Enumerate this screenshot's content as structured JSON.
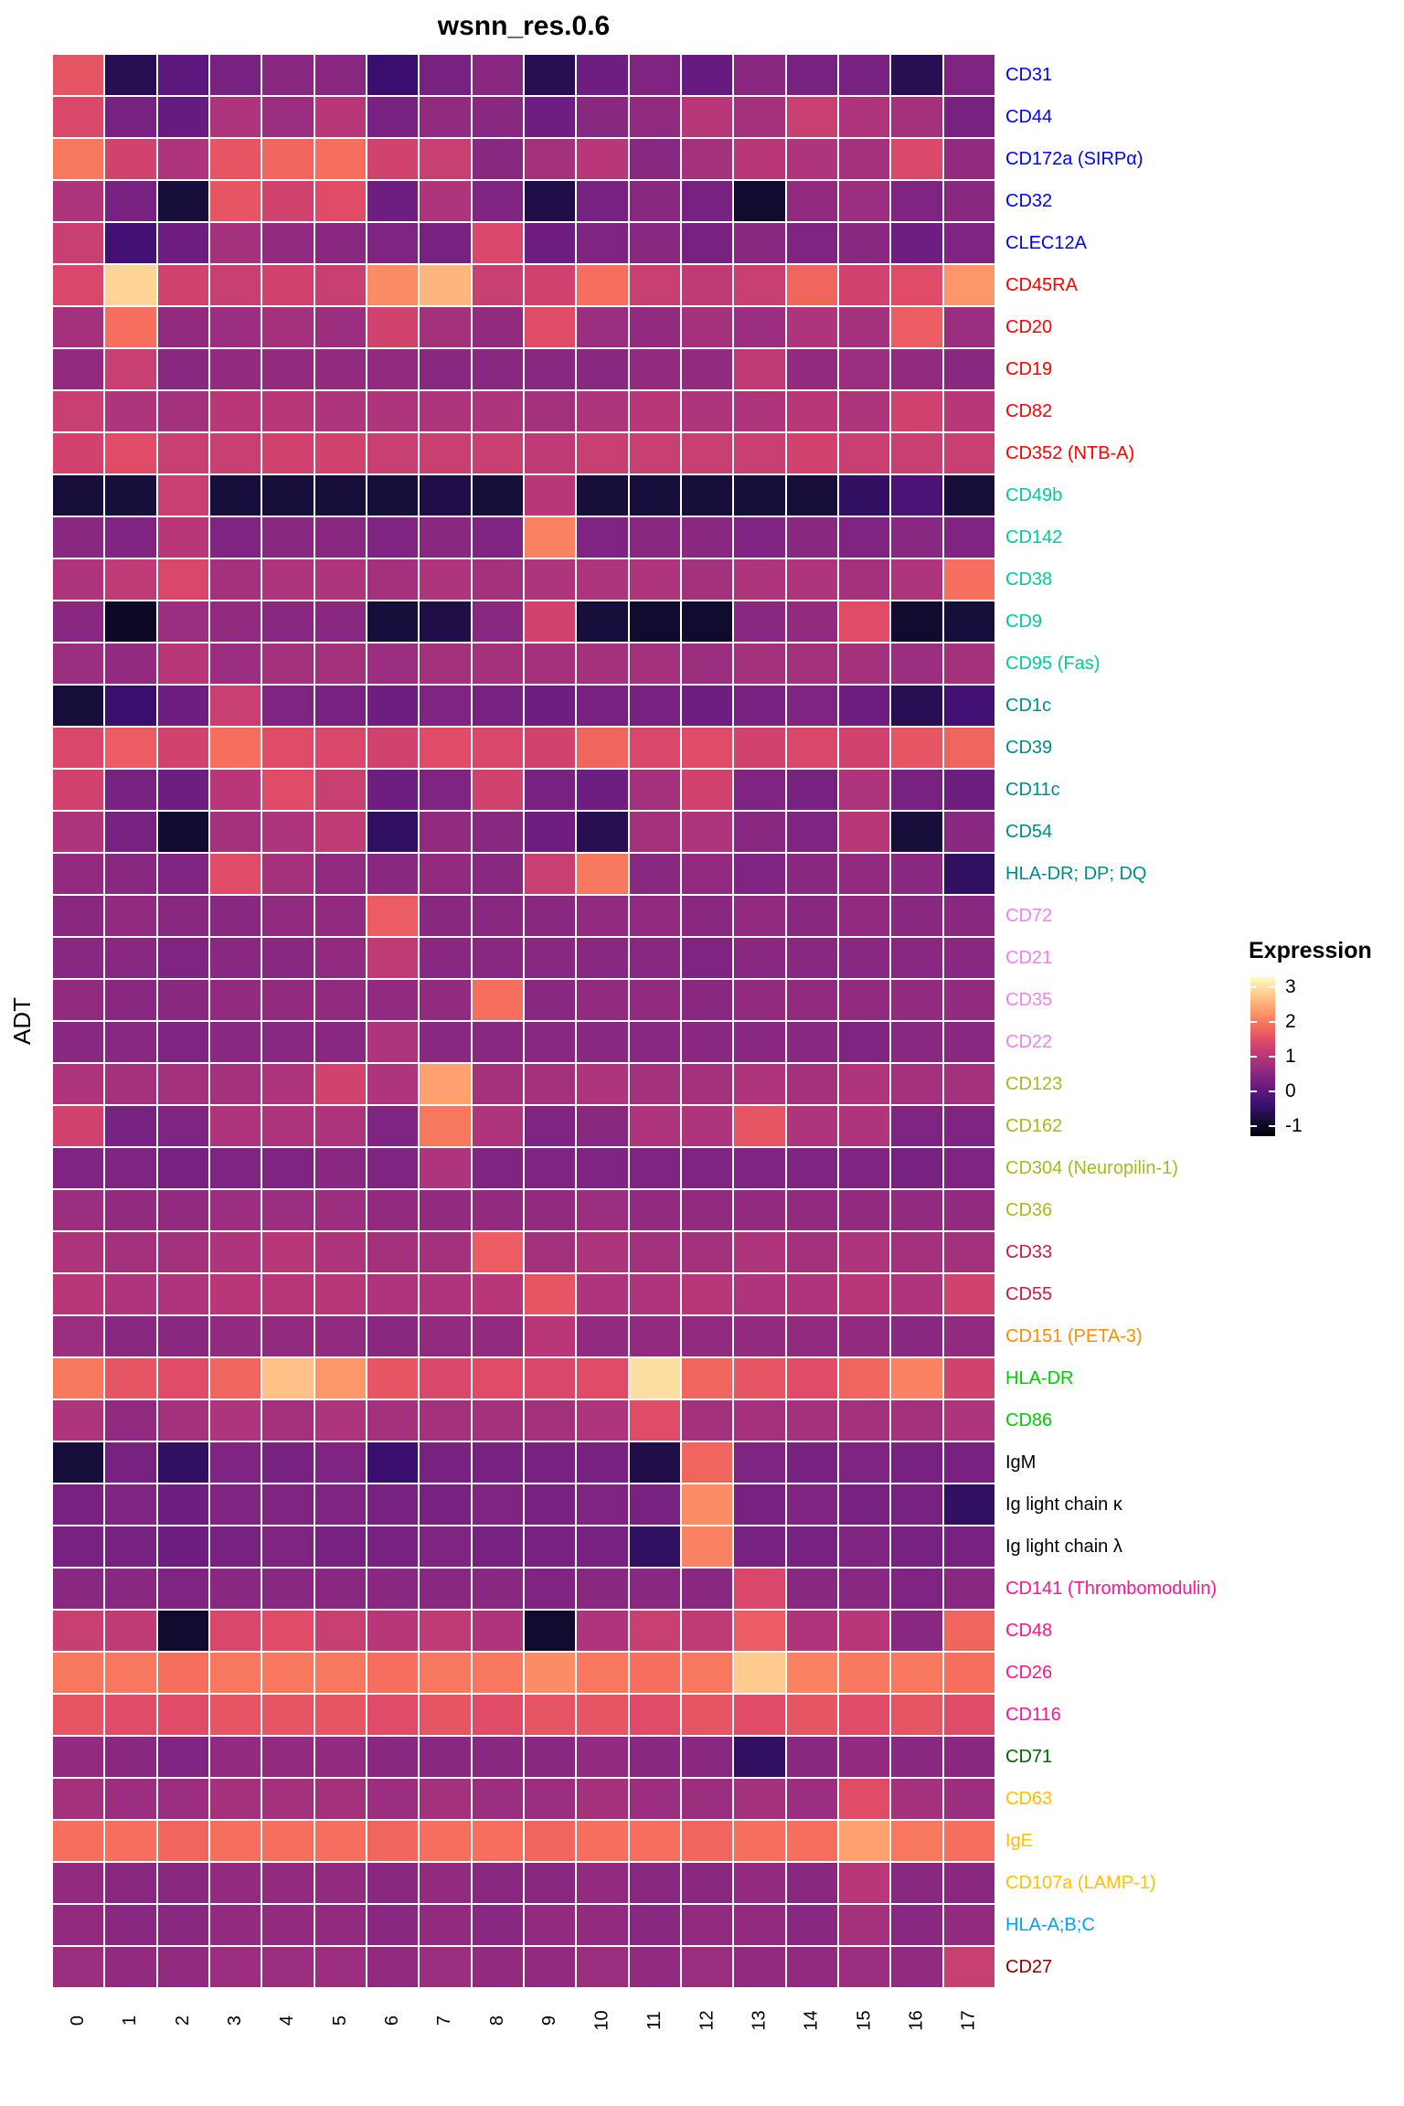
{
  "title": "wsnn_res.0.6",
  "y_axis_label": "ADT",
  "legend": {
    "title": "Expression",
    "ticks": [
      3,
      2,
      1,
      0,
      -1
    ]
  },
  "chart_data": {
    "type": "heatmap",
    "title": "wsnn_res.0.6",
    "xlabel": "",
    "ylabel": "ADT",
    "colormap": "magma",
    "value_domain": [
      -1.3,
      3.3
    ],
    "legend_title": "Expression",
    "legend_ticks": [
      3,
      2,
      1,
      0,
      -1
    ],
    "grid": "white-gaps-between-cells",
    "legend_position": "right",
    "x_categories": [
      "0",
      "1",
      "2",
      "3",
      "4",
      "5",
      "6",
      "7",
      "8",
      "9",
      "10",
      "11",
      "12",
      "13",
      "14",
      "15",
      "16",
      "17"
    ],
    "rows": [
      {
        "label": "CD31",
        "label_color": "#0000FF",
        "values": [
          1.6,
          -0.6,
          0.0,
          0.3,
          0.5,
          0.5,
          -0.4,
          0.3,
          0.5,
          -0.6,
          0.2,
          0.4,
          0.1,
          0.5,
          0.3,
          0.3,
          -0.6,
          0.4
        ]
      },
      {
        "label": "CD44",
        "label_color": "#0000FF",
        "values": [
          1.4,
          0.3,
          0.1,
          0.9,
          0.7,
          1.0,
          0.3,
          0.6,
          0.5,
          0.2,
          0.5,
          0.6,
          1.0,
          0.8,
          1.2,
          0.9,
          0.8,
          0.3
        ]
      },
      {
        "label": "CD172a (SIRPα)",
        "label_color": "#0000FF",
        "values": [
          2.0,
          1.3,
          0.9,
          1.6,
          1.8,
          1.9,
          1.3,
          1.2,
          0.5,
          0.8,
          1.0,
          0.5,
          0.8,
          1.0,
          0.9,
          0.8,
          1.4,
          0.6
        ]
      },
      {
        "label": "CD32",
        "label_color": "#0000FF",
        "values": [
          0.9,
          0.3,
          -0.8,
          1.6,
          1.3,
          1.5,
          0.2,
          0.9,
          0.4,
          -0.7,
          0.3,
          0.5,
          0.3,
          -0.9,
          0.6,
          0.7,
          0.4,
          0.5
        ]
      },
      {
        "label": "CLEC12A",
        "label_color": "#0000FF",
        "values": [
          1.2,
          -0.3,
          0.2,
          0.8,
          0.6,
          0.5,
          0.4,
          0.3,
          1.4,
          0.2,
          0.4,
          0.5,
          0.3,
          0.5,
          0.4,
          0.5,
          0.2,
          0.4
        ]
      },
      {
        "label": "CD45RA",
        "label_color": "#FF0000",
        "values": [
          1.4,
          2.9,
          1.3,
          1.2,
          1.3,
          1.2,
          2.2,
          2.6,
          1.2,
          1.3,
          1.9,
          1.2,
          1.1,
          1.2,
          1.8,
          1.3,
          1.5,
          2.3
        ]
      },
      {
        "label": "CD20",
        "label_color": "#FF0000",
        "values": [
          0.8,
          1.9,
          0.6,
          0.7,
          0.8,
          0.7,
          1.3,
          0.8,
          0.6,
          1.5,
          0.7,
          0.6,
          0.8,
          0.7,
          0.9,
          0.8,
          1.7,
          0.7
        ]
      },
      {
        "label": "CD19",
        "label_color": "#FF0000",
        "values": [
          0.6,
          1.2,
          0.5,
          0.6,
          0.6,
          0.6,
          0.6,
          0.5,
          0.5,
          0.5,
          0.5,
          0.6,
          0.6,
          1.1,
          0.6,
          0.7,
          0.6,
          0.5
        ]
      },
      {
        "label": "CD82",
        "label_color": "#FF0000",
        "values": [
          1.2,
          0.9,
          0.8,
          1.0,
          1.0,
          0.9,
          0.9,
          0.9,
          0.9,
          0.8,
          0.9,
          1.0,
          0.9,
          0.9,
          1.0,
          0.9,
          1.3,
          1.0
        ]
      },
      {
        "label": "CD352 (NTB-A)",
        "label_color": "#FF0000",
        "values": [
          1.3,
          1.5,
          1.2,
          1.2,
          1.3,
          1.3,
          1.2,
          1.2,
          1.2,
          1.1,
          1.2,
          1.2,
          1.2,
          1.2,
          1.3,
          1.2,
          1.2,
          1.2
        ]
      },
      {
        "label": "CD49b",
        "label_color": "#00CC99",
        "values": [
          -0.8,
          -0.8,
          1.2,
          -0.8,
          -0.8,
          -0.8,
          -0.8,
          -0.7,
          -0.8,
          1.0,
          -0.8,
          -0.8,
          -0.8,
          -0.8,
          -0.8,
          -0.5,
          -0.2,
          -0.8
        ]
      },
      {
        "label": "CD142",
        "label_color": "#00CC99",
        "values": [
          0.5,
          0.4,
          1.0,
          0.4,
          0.5,
          0.5,
          0.4,
          0.5,
          0.4,
          2.1,
          0.4,
          0.5,
          0.5,
          0.4,
          0.5,
          0.4,
          0.5,
          0.4
        ]
      },
      {
        "label": "CD38",
        "label_color": "#00CC99",
        "values": [
          0.9,
          1.1,
          1.4,
          0.8,
          0.9,
          0.9,
          0.8,
          0.9,
          0.8,
          0.9,
          0.9,
          0.9,
          0.8,
          0.9,
          0.9,
          0.8,
          0.9,
          1.9
        ]
      },
      {
        "label": "CD9",
        "label_color": "#00CC99",
        "values": [
          0.5,
          -1.0,
          0.7,
          0.6,
          0.5,
          0.5,
          -0.8,
          -0.7,
          0.5,
          1.3,
          -0.8,
          -0.9,
          -0.9,
          0.5,
          0.6,
          1.5,
          -0.9,
          -0.8
        ]
      },
      {
        "label": "CD95 (Fas)",
        "label_color": "#00CC99",
        "values": [
          0.7,
          0.6,
          1.0,
          0.7,
          0.8,
          0.8,
          0.7,
          0.8,
          0.8,
          0.8,
          0.8,
          0.8,
          0.7,
          0.8,
          0.8,
          0.8,
          0.7,
          0.8
        ]
      },
      {
        "label": "CD1c",
        "label_color": "#008B8B",
        "values": [
          -0.8,
          -0.4,
          0.2,
          1.2,
          0.4,
          0.3,
          0.2,
          0.4,
          0.3,
          0.2,
          0.3,
          0.3,
          0.2,
          0.3,
          0.4,
          0.2,
          -0.6,
          -0.3
        ]
      },
      {
        "label": "CD39",
        "label_color": "#008B8B",
        "values": [
          1.4,
          1.7,
          1.3,
          1.9,
          1.5,
          1.4,
          1.3,
          1.5,
          1.4,
          1.3,
          1.8,
          1.4,
          1.5,
          1.3,
          1.4,
          1.3,
          1.6,
          1.8
        ]
      },
      {
        "label": "CD11c",
        "label_color": "#008B8B",
        "values": [
          1.3,
          0.3,
          0.2,
          1.0,
          1.5,
          1.2,
          0.2,
          0.4,
          1.3,
          0.3,
          0.2,
          0.8,
          1.3,
          0.4,
          0.3,
          0.9,
          0.3,
          0.2
        ]
      },
      {
        "label": "CD54",
        "label_color": "#008B8B",
        "values": [
          0.9,
          0.3,
          -0.9,
          0.8,
          0.9,
          1.1,
          -0.5,
          0.6,
          0.5,
          0.2,
          -0.6,
          0.8,
          0.9,
          0.5,
          0.4,
          1.0,
          -0.8,
          0.5
        ]
      },
      {
        "label": "HLA-DR; DP; DQ",
        "label_color": "#008B8B",
        "values": [
          0.6,
          0.5,
          0.4,
          1.5,
          0.8,
          0.6,
          0.5,
          0.6,
          0.5,
          1.2,
          2.0,
          0.5,
          0.6,
          0.4,
          0.5,
          0.6,
          0.5,
          -0.5
        ]
      },
      {
        "label": "CD72",
        "label_color": "#EE82EE",
        "values": [
          0.5,
          0.6,
          0.5,
          0.5,
          0.6,
          0.6,
          1.7,
          0.5,
          0.5,
          0.5,
          0.6,
          0.6,
          0.5,
          0.6,
          0.5,
          0.6,
          0.5,
          0.5
        ]
      },
      {
        "label": "CD21",
        "label_color": "#EE82EE",
        "values": [
          0.5,
          0.5,
          0.4,
          0.5,
          0.5,
          0.6,
          1.1,
          0.5,
          0.5,
          0.5,
          0.5,
          0.5,
          0.4,
          0.5,
          0.5,
          0.5,
          0.5,
          0.5
        ]
      },
      {
        "label": "CD35",
        "label_color": "#EE82EE",
        "values": [
          0.6,
          0.5,
          0.5,
          0.6,
          0.6,
          0.6,
          0.6,
          0.6,
          1.9,
          0.5,
          0.6,
          0.6,
          0.5,
          0.6,
          0.6,
          0.6,
          0.6,
          0.6
        ]
      },
      {
        "label": "CD22",
        "label_color": "#EE82EE",
        "values": [
          0.5,
          0.5,
          0.4,
          0.5,
          0.5,
          0.5,
          0.9,
          0.5,
          0.5,
          0.5,
          0.5,
          0.5,
          0.5,
          0.5,
          0.5,
          0.4,
          0.5,
          0.5
        ]
      },
      {
        "label": "CD123",
        "label_color": "#A8B820",
        "values": [
          0.9,
          0.8,
          0.8,
          0.8,
          0.9,
          1.3,
          0.9,
          2.4,
          0.8,
          0.8,
          0.9,
          0.8,
          0.8,
          0.9,
          0.8,
          0.9,
          0.8,
          0.8
        ]
      },
      {
        "label": "CD162",
        "label_color": "#A8B820",
        "values": [
          1.3,
          0.3,
          0.4,
          0.9,
          0.9,
          0.9,
          0.4,
          2.0,
          0.9,
          0.4,
          0.5,
          0.9,
          0.9,
          1.6,
          0.9,
          0.9,
          0.4,
          0.4
        ]
      },
      {
        "label": "CD304 (Neuropilin-1)",
        "label_color": "#A8B820",
        "values": [
          0.4,
          0.4,
          0.3,
          0.4,
          0.4,
          0.5,
          0.4,
          0.9,
          0.4,
          0.4,
          0.4,
          0.4,
          0.4,
          0.4,
          0.4,
          0.4,
          0.3,
          0.4
        ]
      },
      {
        "label": "CD36",
        "label_color": "#A8B820",
        "values": [
          0.7,
          0.6,
          0.6,
          0.7,
          0.7,
          0.7,
          0.6,
          0.6,
          0.6,
          0.6,
          0.7,
          0.6,
          0.6,
          0.6,
          0.6,
          0.6,
          0.6,
          0.6
        ]
      },
      {
        "label": "CD33",
        "label_color": "#CB1B45",
        "values": [
          0.9,
          0.8,
          0.8,
          0.9,
          1.0,
          0.9,
          0.8,
          0.8,
          1.7,
          0.8,
          0.9,
          0.8,
          0.8,
          0.9,
          0.8,
          0.9,
          0.8,
          0.8
        ]
      },
      {
        "label": "CD55",
        "label_color": "#CB1B45",
        "values": [
          1.0,
          0.9,
          0.9,
          1.0,
          1.0,
          1.0,
          0.9,
          0.9,
          1.0,
          1.6,
          0.9,
          0.9,
          1.0,
          0.9,
          0.9,
          1.0,
          0.9,
          1.3
        ]
      },
      {
        "label": "CD151 (PETA-3)",
        "label_color": "#FF8C00",
        "values": [
          0.7,
          0.5,
          0.5,
          0.6,
          0.6,
          0.6,
          0.5,
          0.6,
          0.6,
          1.0,
          0.6,
          0.6,
          0.6,
          0.6,
          0.6,
          0.6,
          0.5,
          0.6
        ]
      },
      {
        "label": "HLA-DR",
        "label_color": "#00CC00",
        "values": [
          2.0,
          1.6,
          1.5,
          1.8,
          2.7,
          2.3,
          1.6,
          1.4,
          1.5,
          1.4,
          1.5,
          3.0,
          1.8,
          1.6,
          1.5,
          1.8,
          2.1,
          1.3
        ]
      },
      {
        "label": "CD86",
        "label_color": "#00CC00",
        "values": [
          0.9,
          0.6,
          0.8,
          0.9,
          0.8,
          0.9,
          0.8,
          0.8,
          0.8,
          0.8,
          0.9,
          1.5,
          0.8,
          0.8,
          0.8,
          0.8,
          0.8,
          0.9
        ]
      },
      {
        "label": "IgM",
        "label_color": "#000000",
        "values": [
          -0.8,
          0.3,
          -0.5,
          0.4,
          0.3,
          0.4,
          -0.4,
          0.3,
          0.3,
          0.3,
          0.3,
          -0.7,
          1.8,
          0.4,
          0.3,
          0.4,
          0.3,
          0.3
        ]
      },
      {
        "label": "Ig light chain κ",
        "label_color": "#000000",
        "values": [
          0.3,
          0.4,
          0.2,
          0.4,
          0.4,
          0.4,
          0.3,
          0.3,
          0.4,
          0.3,
          0.4,
          0.3,
          2.2,
          0.3,
          0.4,
          0.3,
          0.3,
          -0.5
        ]
      },
      {
        "label": "Ig light chain λ",
        "label_color": "#000000",
        "values": [
          0.3,
          0.3,
          0.2,
          0.3,
          0.4,
          0.3,
          0.3,
          0.4,
          0.3,
          0.3,
          0.3,
          -0.5,
          2.1,
          0.3,
          0.3,
          0.4,
          0.3,
          0.3
        ]
      },
      {
        "label": "CD141 (Thrombomodulin)",
        "label_color": "#FF1493",
        "values": [
          0.5,
          0.5,
          0.4,
          0.5,
          0.5,
          0.5,
          0.5,
          0.5,
          0.5,
          0.4,
          0.5,
          0.5,
          0.5,
          1.4,
          0.5,
          0.5,
          0.4,
          0.5
        ]
      },
      {
        "label": "CD48",
        "label_color": "#FF1493",
        "values": [
          1.2,
          1.1,
          -0.9,
          1.4,
          1.5,
          1.2,
          1.0,
          1.1,
          0.9,
          -0.9,
          0.9,
          1.2,
          1.1,
          1.7,
          0.9,
          1.0,
          0.5,
          1.8
        ]
      },
      {
        "label": "CD26",
        "label_color": "#FF1493",
        "values": [
          2.0,
          2.0,
          1.9,
          2.0,
          2.0,
          2.0,
          1.9,
          2.0,
          2.0,
          2.2,
          2.0,
          1.9,
          2.0,
          2.8,
          2.1,
          2.0,
          2.0,
          1.9
        ]
      },
      {
        "label": "CD116",
        "label_color": "#FF1493",
        "values": [
          1.6,
          1.5,
          1.5,
          1.6,
          1.6,
          1.6,
          1.5,
          1.6,
          1.5,
          1.6,
          1.6,
          1.5,
          1.6,
          1.5,
          1.6,
          1.5,
          1.6,
          1.5
        ]
      },
      {
        "label": "CD71",
        "label_color": "#006400",
        "values": [
          0.6,
          0.5,
          0.4,
          0.6,
          0.6,
          0.6,
          0.5,
          0.5,
          0.5,
          0.5,
          0.6,
          0.5,
          0.5,
          -0.5,
          0.5,
          0.6,
          0.5,
          0.5
        ]
      },
      {
        "label": "CD63",
        "label_color": "#FFC000",
        "values": [
          0.8,
          0.7,
          0.7,
          0.8,
          0.8,
          0.8,
          0.7,
          0.8,
          0.7,
          0.7,
          0.8,
          0.7,
          0.7,
          0.8,
          0.7,
          1.5,
          0.8,
          0.7
        ]
      },
      {
        "label": "IgE",
        "label_color": "#FFC000",
        "values": [
          1.9,
          1.9,
          1.8,
          1.9,
          1.9,
          1.9,
          1.8,
          1.9,
          1.9,
          1.8,
          1.9,
          1.9,
          1.8,
          1.9,
          1.9,
          2.4,
          2.0,
          1.9
        ]
      },
      {
        "label": "CD107a (LAMP-1)",
        "label_color": "#FFC000",
        "values": [
          0.6,
          0.5,
          0.5,
          0.6,
          0.6,
          0.6,
          0.5,
          0.6,
          0.5,
          0.5,
          0.6,
          0.5,
          0.5,
          0.6,
          0.5,
          1.0,
          0.5,
          0.5
        ]
      },
      {
        "label": "HLA-A;B;C",
        "label_color": "#00A2FF",
        "values": [
          0.6,
          0.5,
          0.5,
          0.6,
          0.6,
          0.6,
          0.5,
          0.6,
          0.5,
          0.6,
          0.6,
          0.5,
          0.6,
          0.6,
          0.5,
          0.8,
          0.5,
          0.6
        ]
      },
      {
        "label": "CD27",
        "label_color": "#8B0000",
        "values": [
          0.7,
          0.6,
          0.6,
          0.7,
          0.7,
          0.7,
          0.6,
          0.7,
          0.6,
          0.6,
          0.7,
          0.6,
          0.7,
          0.6,
          0.6,
          0.7,
          0.6,
          1.2
        ]
      }
    ]
  }
}
